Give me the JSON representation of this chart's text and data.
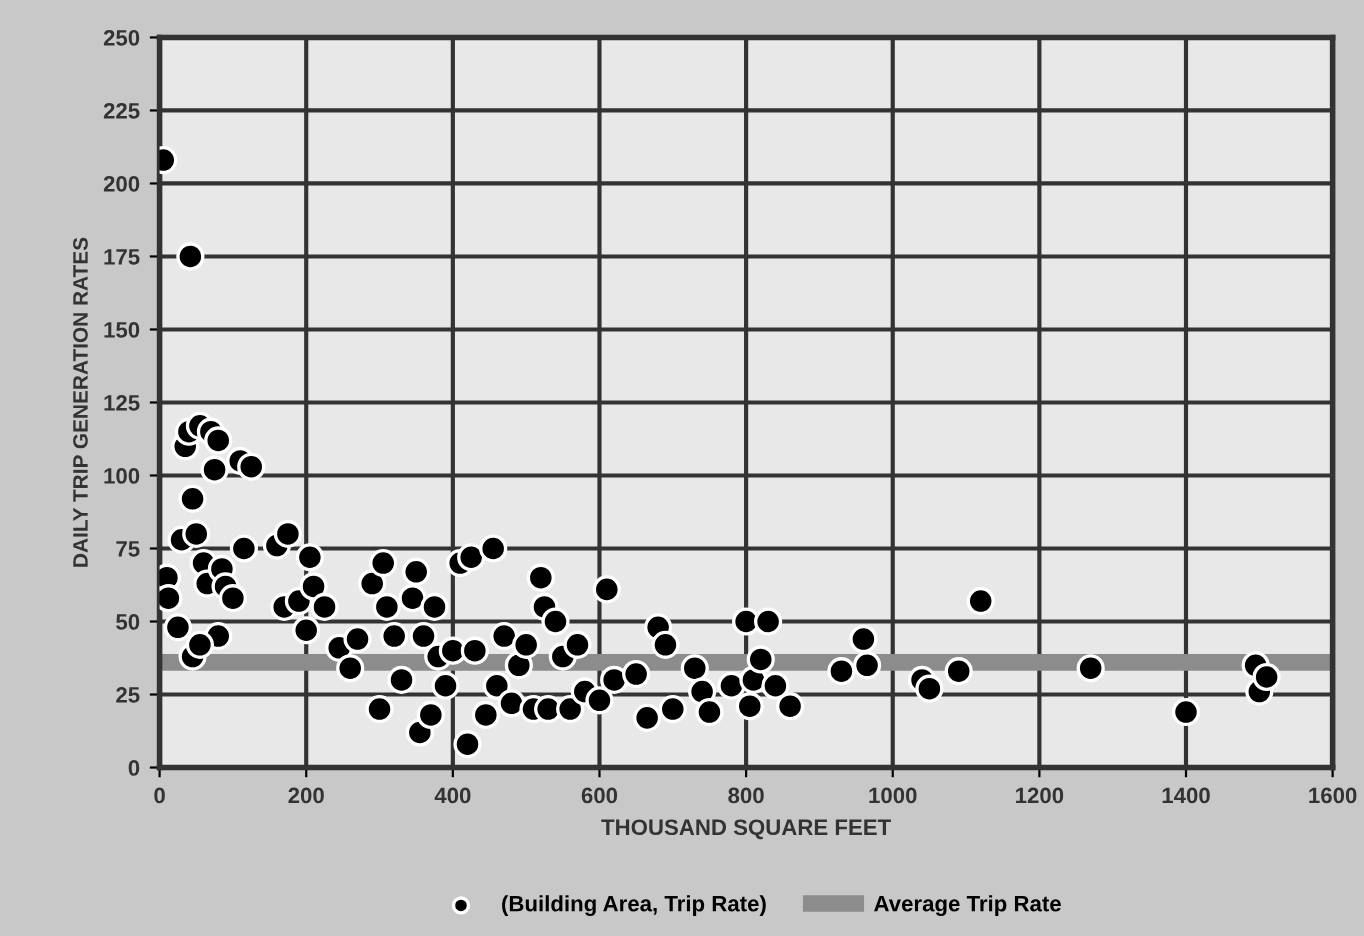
{
  "chart_data": {
    "type": "scatter",
    "xlabel": "THOUSAND SQUARE FEET",
    "ylabel": "DAILY TRIP GENERATION RATES",
    "xlim": [
      0,
      1600
    ],
    "xticks": [
      0,
      200,
      400,
      600,
      800,
      1000,
      1200,
      1400,
      1600
    ],
    "ylim": [
      0,
      250
    ],
    "yticks": [
      0,
      25,
      50,
      75,
      100,
      125,
      150,
      175,
      200,
      225,
      250
    ],
    "grid": true,
    "legend": "bottom",
    "series": [
      {
        "name": "(Building Area, Trip Rate)",
        "color": "#000000",
        "marker": "circle",
        "x": [
          5,
          42,
          10,
          12,
          25,
          30,
          35,
          40,
          45,
          50,
          55,
          60,
          65,
          70,
          75,
          80,
          85,
          90,
          100,
          110,
          125,
          115,
          160,
          175,
          170,
          190,
          200,
          205,
          210,
          225,
          245,
          260,
          270,
          290,
          300,
          305,
          310,
          320,
          330,
          345,
          350,
          355,
          360,
          370,
          375,
          380,
          390,
          400,
          410,
          420,
          425,
          430,
          445,
          455,
          460,
          470,
          480,
          490,
          500,
          510,
          520,
          525,
          530,
          540,
          550,
          560,
          570,
          580,
          600,
          610,
          620,
          650,
          665,
          680,
          690,
          700,
          730,
          740,
          750,
          780,
          800,
          805,
          810,
          820,
          830,
          840,
          860,
          930,
          960,
          965,
          1040,
          1050,
          1090,
          1120,
          1270,
          1400,
          1495,
          1500,
          1510,
          80,
          45,
          55
        ],
        "values": [
          208,
          175,
          65,
          58,
          48,
          78,
          110,
          115,
          92,
          80,
          117,
          70,
          63,
          115,
          102,
          112,
          68,
          62,
          58,
          105,
          103,
          75,
          76,
          80,
          55,
          57,
          47,
          72,
          62,
          55,
          41,
          34,
          44,
          63,
          20,
          70,
          55,
          45,
          30,
          58,
          67,
          12,
          45,
          18,
          55,
          38,
          28,
          40,
          70,
          8,
          72,
          40,
          18,
          75,
          28,
          45,
          22,
          35,
          42,
          20,
          65,
          55,
          20,
          50,
          38,
          20,
          42,
          26,
          23,
          61,
          30,
          32,
          17,
          48,
          42,
          20,
          34,
          26,
          19,
          28,
          50,
          21,
          30,
          37,
          50,
          28,
          21,
          33,
          44,
          35,
          30,
          27,
          33,
          57,
          34,
          19,
          35,
          26,
          31,
          45,
          38,
          42
        ]
      },
      {
        "name": "Average Trip Rate",
        "color": "#8c8c8c",
        "type": "line",
        "marker": "none",
        "x": [
          0,
          1600
        ],
        "values": [
          36,
          36
        ]
      }
    ]
  }
}
